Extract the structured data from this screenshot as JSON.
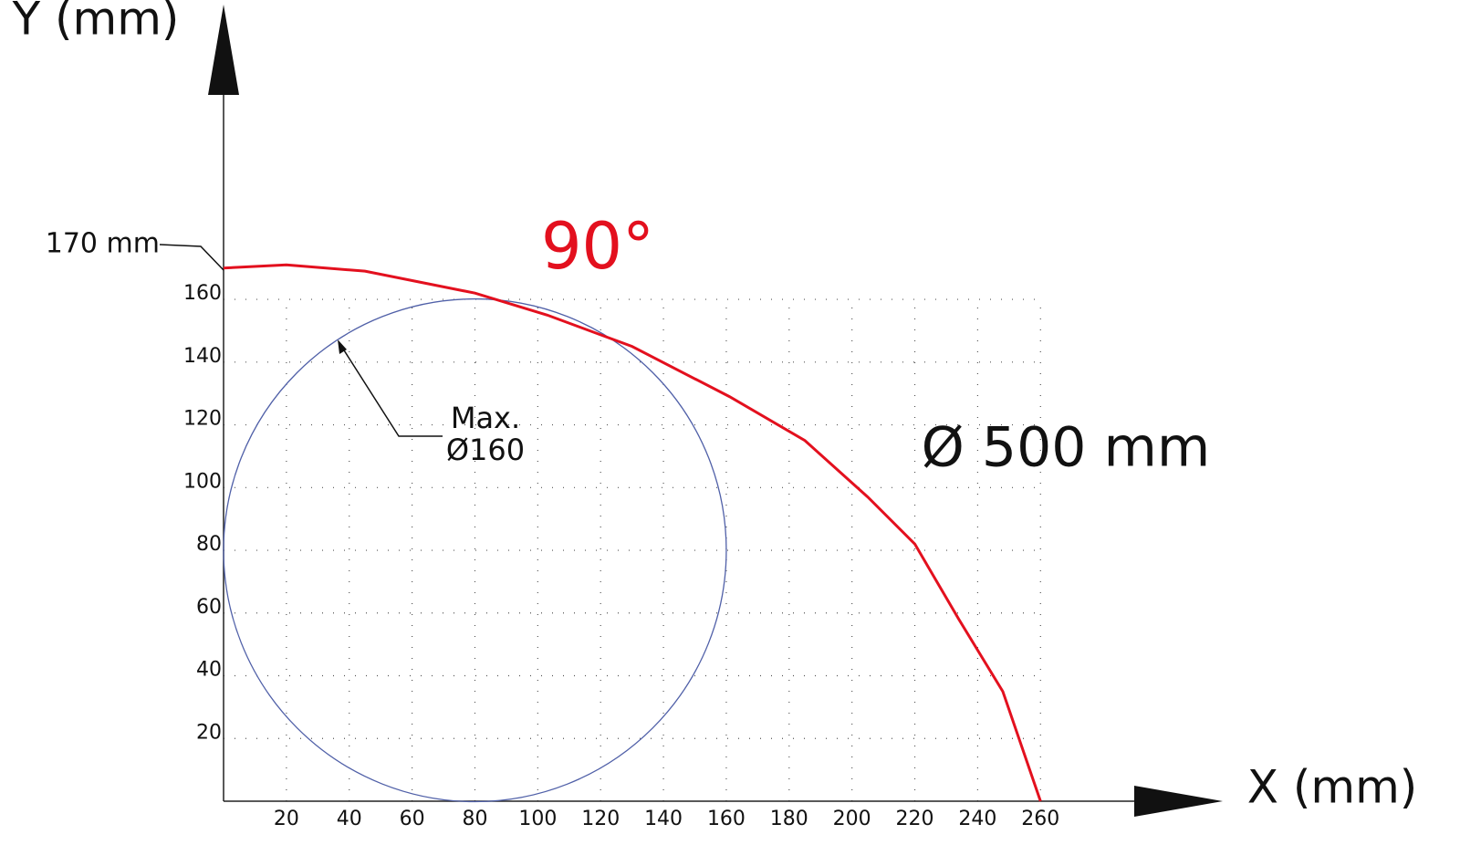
{
  "chart_data": {
    "type": "line",
    "y_axis_label": "Y (mm)",
    "x_axis_label": "X (mm)",
    "reach_label": "170 mm",
    "angle_label": "90°",
    "diameter_label": "Ø 500 mm",
    "circle_label": "Max.",
    "circle_diameter_label": "Ø160",
    "xlim": [
      0,
      318
    ],
    "ylim": [
      0,
      254
    ],
    "xticks": [
      20,
      40,
      60,
      80,
      100,
      120,
      140,
      160,
      180,
      200,
      220,
      240,
      260
    ],
    "yticks": [
      20,
      40,
      60,
      80,
      100,
      120,
      140,
      160
    ],
    "grid": true,
    "series": [
      {
        "color": "#e3101e",
        "x": [
          0,
          20,
          45,
          80,
          103,
          130,
          161,
          185,
          205,
          220,
          234,
          248,
          260
        ],
        "values": [
          170,
          171,
          169,
          162,
          155,
          145,
          129,
          115,
          97,
          82,
          58,
          35,
          0
        ]
      }
    ],
    "circle": {
      "cx": 80,
      "cy": 80,
      "r": 80,
      "color": "#5060a8"
    }
  }
}
